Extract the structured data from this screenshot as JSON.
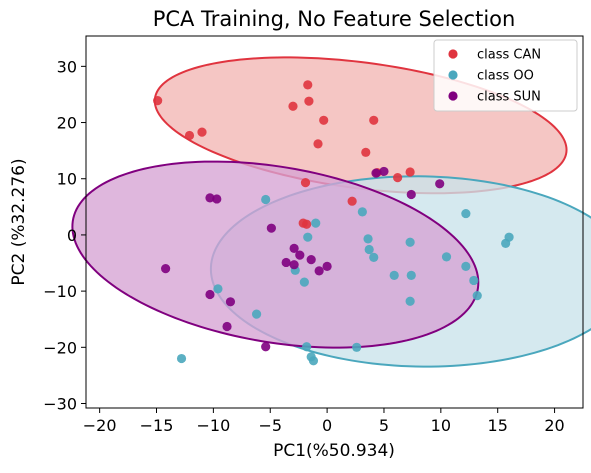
{
  "chart_data": {
    "type": "scatter",
    "title": "PCA Training, No Feature Selection",
    "xlabel": "PC1(%50.934)",
    "ylabel": "PC2 (%32.276)",
    "xlim": [
      -21.2,
      22.5
    ],
    "ylim": [
      -30.8,
      35.4
    ],
    "xticks": [
      -20,
      -15,
      -10,
      -5,
      0,
      5,
      10,
      15,
      20
    ],
    "yticks": [
      -30,
      -20,
      -10,
      0,
      10,
      20,
      30
    ],
    "grid": false,
    "legend_position": "top-right",
    "series": [
      {
        "name": "class CAN",
        "color": "#e0343f",
        "fill": "#f2b6b4",
        "points": [
          [
            -14.9,
            23.9
          ],
          [
            -12.1,
            17.7
          ],
          [
            -11.0,
            18.3
          ],
          [
            -1.7,
            26.7
          ],
          [
            -1.6,
            23.8
          ],
          [
            -3.0,
            22.9
          ],
          [
            -0.3,
            20.4
          ],
          [
            4.1,
            20.4
          ],
          [
            -0.8,
            16.2
          ],
          [
            3.4,
            14.7
          ],
          [
            4.4,
            11.1
          ],
          [
            6.2,
            10.2
          ],
          [
            7.3,
            11.2
          ],
          [
            2.2,
            6.0
          ],
          [
            -1.9,
            9.3
          ],
          [
            -2.1,
            2.1
          ],
          [
            -1.8,
            1.9
          ]
        ],
        "ellipse": {
          "cx": 2.95,
          "cy": 19.5,
          "rx": 18.9,
          "ry": 10.8,
          "angle_deg": -20.5
        }
      },
      {
        "name": "class OO",
        "color": "#4aa7bd",
        "fill": "#c9e3eb",
        "points": [
          [
            -5.4,
            6.3
          ],
          [
            -12.8,
            -22.0
          ],
          [
            -9.6,
            -9.6
          ],
          [
            -6.2,
            -14.1
          ],
          [
            -2.8,
            -6.3
          ],
          [
            -2.0,
            -8.4
          ],
          [
            -1.7,
            -0.4
          ],
          [
            -1.0,
            2.1
          ],
          [
            -1.4,
            -21.7
          ],
          [
            -1.8,
            -19.9
          ],
          [
            -1.2,
            -22.4
          ],
          [
            2.6,
            -20.0
          ],
          [
            3.1,
            4.1
          ],
          [
            3.6,
            -0.7
          ],
          [
            3.7,
            -2.6
          ],
          [
            4.1,
            -4.0
          ],
          [
            5.9,
            -7.2
          ],
          [
            7.3,
            -1.3
          ],
          [
            7.4,
            -7.2
          ],
          [
            7.3,
            -11.8
          ],
          [
            10.5,
            -3.9
          ],
          [
            12.2,
            3.8
          ],
          [
            12.2,
            -5.6
          ],
          [
            12.9,
            -8.1
          ],
          [
            13.2,
            -10.8
          ],
          [
            15.7,
            -1.5
          ],
          [
            16.0,
            -0.4
          ]
        ],
        "ellipse": {
          "cx": 8.25,
          "cy": -6.5,
          "rx": 18.5,
          "ry": 16.9,
          "angle_deg": -8.0
        }
      },
      {
        "name": "class SUN",
        "color": "#80007f",
        "fill": "#d6a3d4",
        "points": [
          [
            -14.2,
            -6.0
          ],
          [
            -10.3,
            6.6
          ],
          [
            -9.7,
            6.4
          ],
          [
            -10.3,
            -10.6
          ],
          [
            -8.5,
            -11.9
          ],
          [
            -8.8,
            -16.3
          ],
          [
            -5.4,
            -19.9
          ],
          [
            -4.9,
            1.2
          ],
          [
            -3.6,
            -4.9
          ],
          [
            -2.9,
            -2.4
          ],
          [
            -2.4,
            -3.6
          ],
          [
            -2.9,
            -5.3
          ],
          [
            -1.4,
            -4.4
          ],
          [
            -0.7,
            -6.4
          ],
          [
            0.0,
            -5.6
          ],
          [
            4.3,
            11.0
          ],
          [
            5.0,
            11.3
          ],
          [
            7.4,
            7.2
          ],
          [
            9.9,
            9.1
          ]
        ],
        "ellipse": {
          "cx": -4.55,
          "cy": -3.5,
          "rx": 19.7,
          "ry": 14.3,
          "angle_deg": -38.0
        }
      }
    ]
  }
}
